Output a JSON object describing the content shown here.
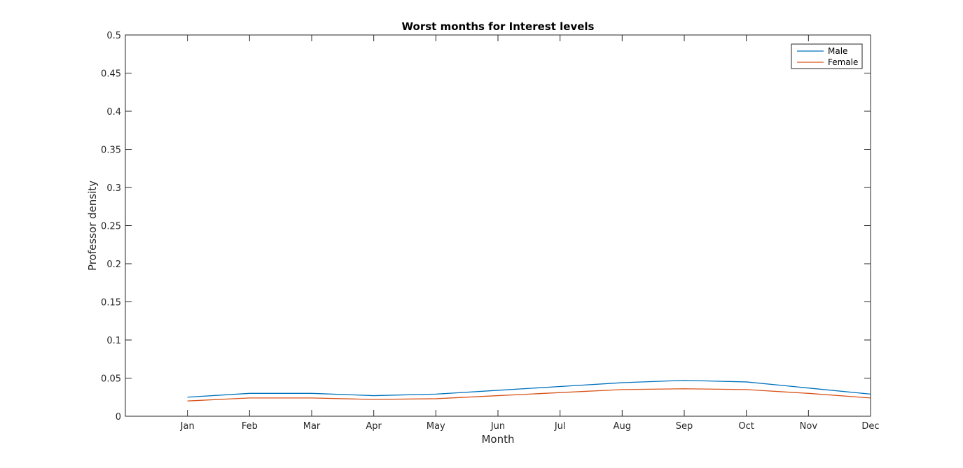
{
  "chart_data": {
    "type": "line",
    "title": "Worst months for Interest levels",
    "xlabel": "Month",
    "ylabel": "Professor density",
    "categories": [
      "Jan",
      "Feb",
      "Mar",
      "Apr",
      "May",
      "Jun",
      "Jul",
      "Aug",
      "Sep",
      "Oct",
      "Nov",
      "Dec"
    ],
    "x_range": [
      0,
      12
    ],
    "ylim": [
      0,
      0.5
    ],
    "y_ticks": [
      0,
      0.05,
      0.1,
      0.15,
      0.2,
      0.25,
      0.3,
      0.35,
      0.4,
      0.45,
      0.5
    ],
    "y_tick_labels": [
      "0",
      "0.05",
      "0.1",
      "0.15",
      "0.2",
      "0.25",
      "0.3",
      "0.35",
      "0.4",
      "0.45",
      "0.5"
    ],
    "grid": false,
    "legend_position": "top-right",
    "series": [
      {
        "name": "Male",
        "color": "#0072bd",
        "values": [
          0.025,
          0.03,
          0.03,
          0.027,
          0.029,
          0.034,
          0.039,
          0.044,
          0.047,
          0.045,
          0.037,
          0.029
        ]
      },
      {
        "name": "Female",
        "color": "#d95319",
        "values": [
          0.02,
          0.024,
          0.024,
          0.022,
          0.023,
          0.027,
          0.031,
          0.035,
          0.036,
          0.035,
          0.03,
          0.024
        ]
      }
    ]
  }
}
